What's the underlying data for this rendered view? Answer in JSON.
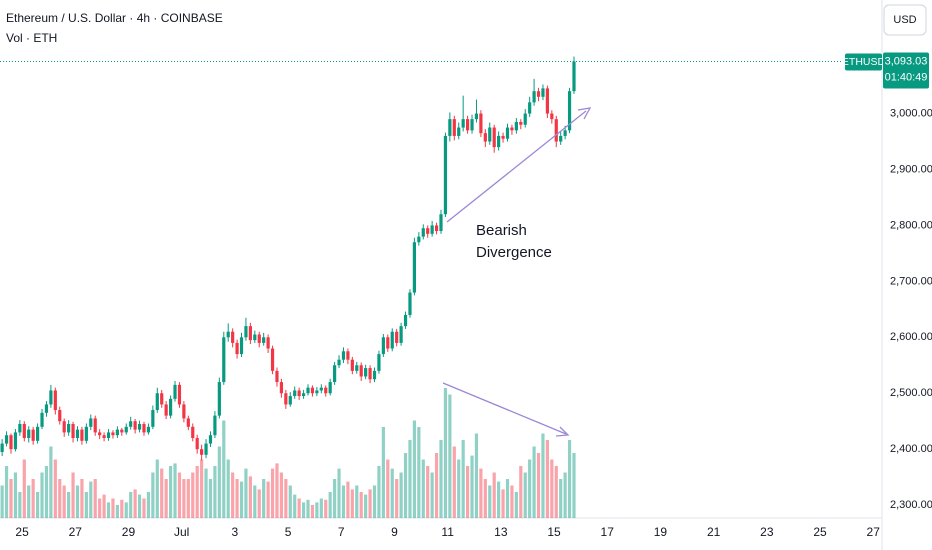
{
  "header": {
    "title": "Ethereum / U.S. Dollar · 4h · COINBASE",
    "volume_label": "Vol · ETH",
    "currency": "USD"
  },
  "chart_data": {
    "type": "candlestick",
    "symbol": "ETHUSD",
    "countdown": "01:40:49",
    "annotation": [
      "Bearish",
      "Divergence"
    ],
    "start": 24.1667,
    "interval_hours": 4,
    "up_color": "#089981",
    "down_color": "#f23645",
    "ohlc": [
      [
        2395,
        2418,
        2388,
        2410
      ],
      [
        2410,
        2432,
        2405,
        2425
      ],
      [
        2425,
        2428,
        2392,
        2400
      ],
      [
        2400,
        2436,
        2396,
        2430
      ],
      [
        2430,
        2452,
        2424,
        2445
      ],
      [
        2445,
        2450,
        2414,
        2420
      ],
      [
        2420,
        2441,
        2412,
        2435
      ],
      [
        2435,
        2440,
        2408,
        2415
      ],
      [
        2415,
        2446,
        2410,
        2440
      ],
      [
        2440,
        2472,
        2436,
        2465
      ],
      [
        2465,
        2486,
        2458,
        2480
      ],
      [
        2480,
        2515,
        2474,
        2505
      ],
      [
        2505,
        2510,
        2462,
        2470
      ],
      [
        2470,
        2476,
        2444,
        2450
      ],
      [
        2450,
        2455,
        2422,
        2430
      ],
      [
        2430,
        2452,
        2424,
        2445
      ],
      [
        2445,
        2449,
        2412,
        2420
      ],
      [
        2420,
        2441,
        2414,
        2435
      ],
      [
        2435,
        2440,
        2408,
        2415
      ],
      [
        2415,
        2446,
        2410,
        2440
      ],
      [
        2440,
        2462,
        2434,
        2455
      ],
      [
        2455,
        2460,
        2424,
        2430
      ],
      [
        2430,
        2436,
        2418,
        2425
      ],
      [
        2425,
        2430,
        2414,
        2420
      ],
      [
        2420,
        2436,
        2415,
        2430
      ],
      [
        2430,
        2434,
        2419,
        2425
      ],
      [
        2425,
        2441,
        2420,
        2435
      ],
      [
        2435,
        2438,
        2424,
        2430
      ],
      [
        2430,
        2446,
        2426,
        2440
      ],
      [
        2440,
        2458,
        2435,
        2450
      ],
      [
        2450,
        2454,
        2428,
        2435
      ],
      [
        2435,
        2451,
        2430,
        2445
      ],
      [
        2445,
        2449,
        2424,
        2430
      ],
      [
        2430,
        2446,
        2426,
        2440
      ],
      [
        2440,
        2478,
        2436,
        2470
      ],
      [
        2470,
        2510,
        2465,
        2500
      ],
      [
        2500,
        2506,
        2474,
        2480
      ],
      [
        2480,
        2486,
        2454,
        2460
      ],
      [
        2460,
        2496,
        2455,
        2490
      ],
      [
        2490,
        2522,
        2485,
        2515
      ],
      [
        2515,
        2520,
        2474,
        2480
      ],
      [
        2480,
        2486,
        2448,
        2455
      ],
      [
        2455,
        2460,
        2434,
        2440
      ],
      [
        2440,
        2446,
        2414,
        2420
      ],
      [
        2420,
        2426,
        2392,
        2400
      ],
      [
        2400,
        2408,
        2380,
        2390
      ],
      [
        2390,
        2418,
        2384,
        2410
      ],
      [
        2410,
        2432,
        2404,
        2425
      ],
      [
        2425,
        2468,
        2420,
        2460
      ],
      [
        2460,
        2528,
        2455,
        2520
      ],
      [
        2520,
        2610,
        2515,
        2600
      ],
      [
        2600,
        2625,
        2592,
        2610
      ],
      [
        2610,
        2616,
        2582,
        2590
      ],
      [
        2590,
        2596,
        2562,
        2570
      ],
      [
        2570,
        2608,
        2565,
        2600
      ],
      [
        2600,
        2635,
        2594,
        2620
      ],
      [
        2620,
        2626,
        2588,
        2595
      ],
      [
        2595,
        2612,
        2590,
        2605
      ],
      [
        2605,
        2610,
        2582,
        2590
      ],
      [
        2590,
        2608,
        2585,
        2600
      ],
      [
        2600,
        2605,
        2572,
        2580
      ],
      [
        2580,
        2585,
        2534,
        2540
      ],
      [
        2540,
        2546,
        2512,
        2520
      ],
      [
        2520,
        2526,
        2492,
        2500
      ],
      [
        2500,
        2506,
        2472,
        2480
      ],
      [
        2480,
        2502,
        2476,
        2495
      ],
      [
        2495,
        2512,
        2490,
        2505
      ],
      [
        2505,
        2510,
        2488,
        2495
      ],
      [
        2495,
        2506,
        2490,
        2500
      ],
      [
        2500,
        2516,
        2496,
        2510
      ],
      [
        2510,
        2514,
        2494,
        2500
      ],
      [
        2500,
        2511,
        2495,
        2505
      ],
      [
        2505,
        2516,
        2500,
        2510
      ],
      [
        2510,
        2514,
        2494,
        2500
      ],
      [
        2500,
        2526,
        2496,
        2520
      ],
      [
        2520,
        2556,
        2515,
        2550
      ],
      [
        2550,
        2568,
        2545,
        2560
      ],
      [
        2560,
        2582,
        2554,
        2575
      ],
      [
        2575,
        2580,
        2552,
        2560
      ],
      [
        2560,
        2565,
        2534,
        2540
      ],
      [
        2540,
        2556,
        2535,
        2550
      ],
      [
        2550,
        2555,
        2522,
        2530
      ],
      [
        2530,
        2551,
        2525,
        2545
      ],
      [
        2545,
        2550,
        2518,
        2525
      ],
      [
        2525,
        2546,
        2520,
        2540
      ],
      [
        2540,
        2576,
        2535,
        2570
      ],
      [
        2570,
        2606,
        2565,
        2600
      ],
      [
        2600,
        2605,
        2574,
        2580
      ],
      [
        2580,
        2616,
        2575,
        2610
      ],
      [
        2610,
        2615,
        2584,
        2590
      ],
      [
        2590,
        2626,
        2585,
        2620
      ],
      [
        2620,
        2646,
        2615,
        2640
      ],
      [
        2640,
        2686,
        2635,
        2680
      ],
      [
        2680,
        2778,
        2675,
        2770
      ],
      [
        2770,
        2788,
        2764,
        2780
      ],
      [
        2780,
        2802,
        2775,
        2795
      ],
      [
        2795,
        2800,
        2778,
        2785
      ],
      [
        2785,
        2808,
        2780,
        2800
      ],
      [
        2800,
        2805,
        2784,
        2790
      ],
      [
        2790,
        2828,
        2785,
        2820
      ],
      [
        2820,
        2966,
        2815,
        2960
      ],
      [
        2960,
        3002,
        2950,
        2990
      ],
      [
        2990,
        2996,
        2952,
        2960
      ],
      [
        2960,
        2984,
        2954,
        2975
      ],
      [
        2975,
        3032,
        2968,
        2990
      ],
      [
        2990,
        2996,
        2964,
        2970
      ],
      [
        2970,
        2998,
        2964,
        2990
      ],
      [
        2990,
        3025,
        2984,
        3000
      ],
      [
        3000,
        3006,
        2958,
        2965
      ],
      [
        2965,
        2972,
        2940,
        2950
      ],
      [
        2950,
        2984,
        2944,
        2975
      ],
      [
        2975,
        2980,
        2930,
        2940
      ],
      [
        2940,
        2968,
        2934,
        2960
      ],
      [
        2960,
        2966,
        2948,
        2955
      ],
      [
        2955,
        2982,
        2950,
        2975
      ],
      [
        2975,
        2980,
        2962,
        2970
      ],
      [
        2970,
        2992,
        2964,
        2985
      ],
      [
        2985,
        2990,
        2972,
        2980
      ],
      [
        2980,
        3008,
        2975,
        3000
      ],
      [
        3000,
        3030,
        2994,
        3020
      ],
      [
        3020,
        3062,
        3014,
        3040
      ],
      [
        3040,
        3046,
        3022,
        3030
      ],
      [
        3030,
        3052,
        3024,
        3045
      ],
      [
        3045,
        3050,
        2992,
        3000
      ],
      [
        3000,
        3006,
        2982,
        2990
      ],
      [
        2990,
        2996,
        2940,
        2950
      ],
      [
        2950,
        2968,
        2944,
        2960
      ],
      [
        2960,
        2978,
        2954,
        2970
      ],
      [
        2970,
        3046,
        2965,
        3040
      ],
      [
        3040,
        3102,
        3035,
        3093.03
      ]
    ],
    "volume": [
      25,
      40,
      30,
      35,
      20,
      45,
      25,
      30,
      20,
      35,
      40,
      55,
      45,
      30,
      25,
      20,
      35,
      25,
      30,
      20,
      28,
      30,
      15,
      18,
      12,
      15,
      10,
      14,
      12,
      20,
      22,
      18,
      15,
      20,
      35,
      45,
      38,
      30,
      40,
      42,
      35,
      30,
      30,
      35,
      40,
      45,
      38,
      30,
      40,
      55,
      75,
      45,
      35,
      30,
      28,
      38,
      32,
      25,
      22,
      30,
      28,
      38,
      42,
      35,
      30,
      25,
      18,
      15,
      12,
      14,
      10,
      12,
      15,
      14,
      20,
      30,
      38,
      25,
      28,
      22,
      25,
      20,
      18,
      22,
      25,
      40,
      70,
      45,
      38,
      30,
      35,
      50,
      60,
      75,
      70,
      45,
      40,
      35,
      50,
      60,
      100,
      95,
      55,
      45,
      60,
      40,
      48,
      65,
      38,
      30,
      25,
      35,
      28,
      22,
      30,
      25,
      20,
      40,
      35,
      45,
      55,
      50,
      65,
      60,
      45,
      40,
      30,
      35,
      60,
      50
    ],
    "vlim": [
      0,
      100
    ],
    "xlim": [
      24.17,
      57.33
    ],
    "xticks": [
      25,
      27,
      29,
      {
        "value": 31,
        "label": "Jul"
      },
      {
        "value": 33,
        "label": "3"
      },
      {
        "value": 35,
        "label": "5"
      },
      {
        "value": 37,
        "label": "7"
      },
      {
        "value": 39,
        "label": "9"
      },
      {
        "value": 41,
        "label": "11"
      },
      {
        "value": 43,
        "label": "13"
      },
      {
        "value": 45,
        "label": "15"
      },
      {
        "value": 47,
        "label": "17"
      },
      {
        "value": 49,
        "label": "19"
      },
      {
        "value": 51,
        "label": "21"
      },
      {
        "value": 53,
        "label": "23"
      },
      {
        "value": 55,
        "label": "25"
      },
      {
        "value": 57,
        "label": "27"
      }
    ],
    "ylim": [
      2277,
      3203
    ],
    "yticks": [
      {
        "value": 2300,
        "label": "2,300.00"
      },
      {
        "value": 2400,
        "label": "2,400.00"
      },
      {
        "value": 2500,
        "label": "2,500.00"
      },
      {
        "value": 2600,
        "label": "2,600.00"
      },
      {
        "value": 2700,
        "label": "2,700.00"
      },
      {
        "value": 2800,
        "label": "2,800.00"
      },
      {
        "value": 2900,
        "label": "2,900.00"
      },
      {
        "value": 3000,
        "label": "3,000.00"
      }
    ],
    "last_price": {
      "value": 3093.03,
      "label": "3,093.03"
    }
  }
}
